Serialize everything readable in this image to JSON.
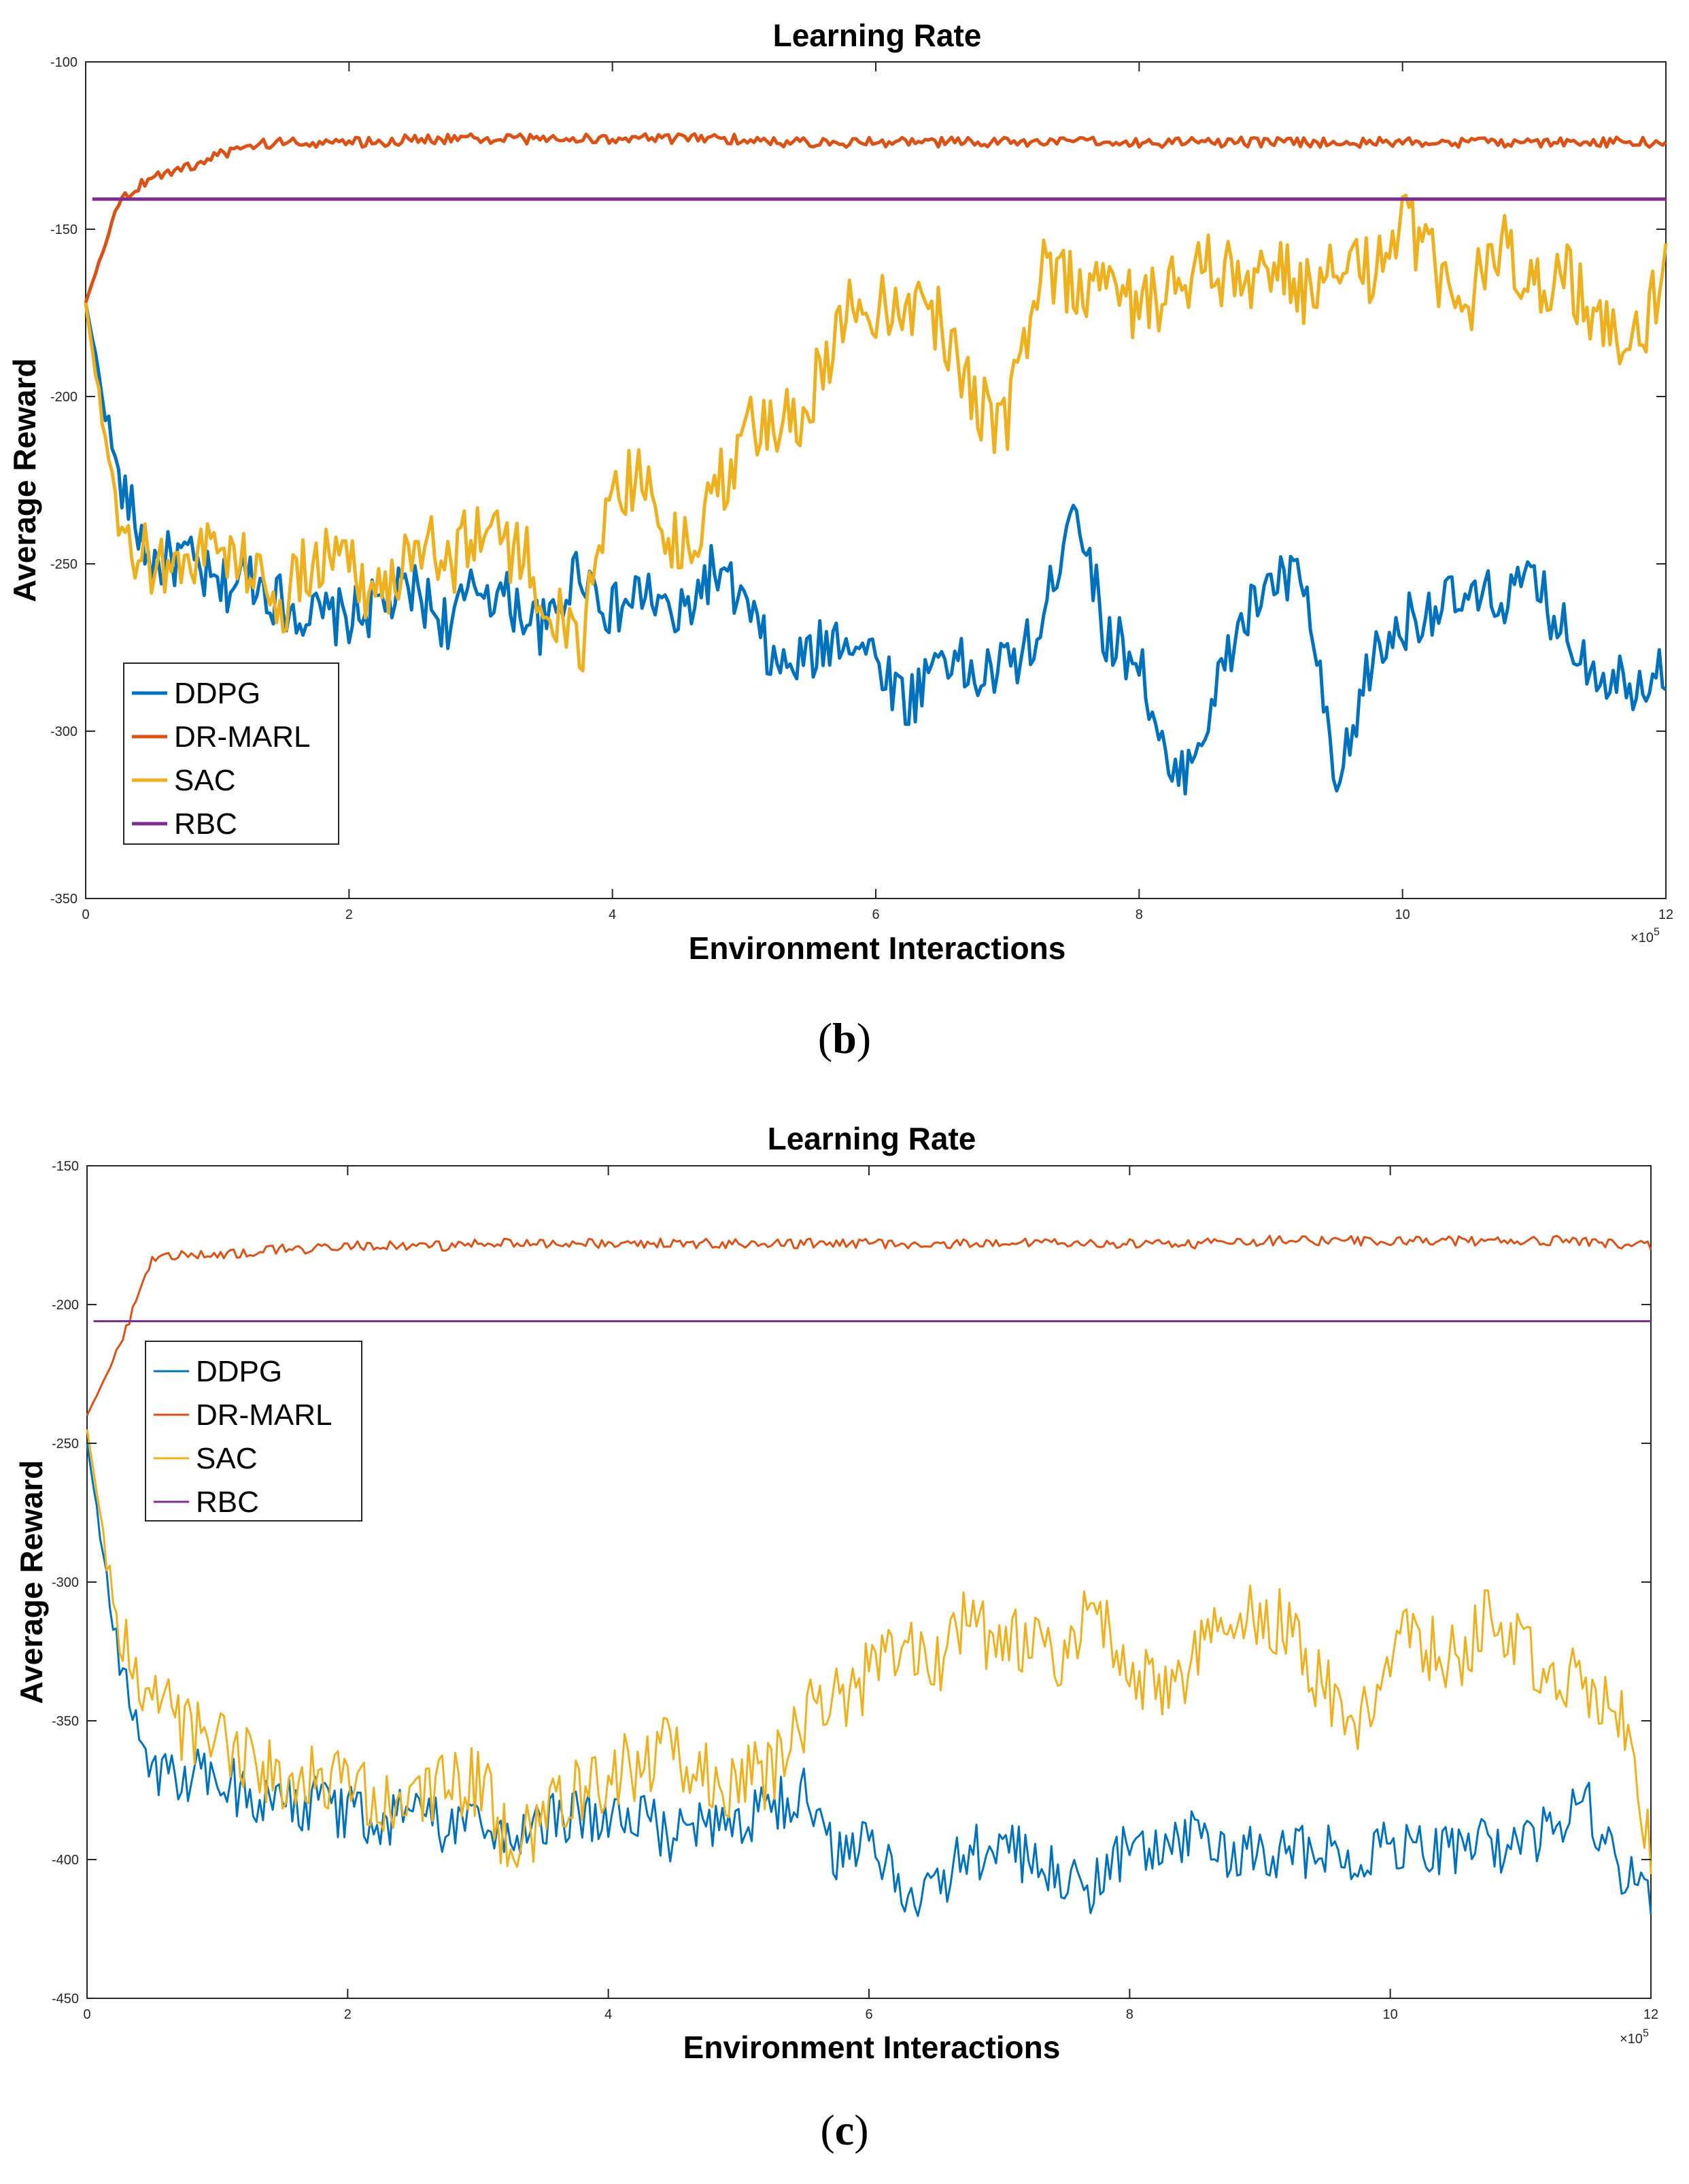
{
  "charts": [
    {
      "caption_open": "(",
      "caption_letter": "b",
      "caption_close": ")",
      "title": "Learning Rate",
      "xlabel": "Environment Interactions",
      "ylabel": "Average Reward",
      "x_multiplier": "×10",
      "x_exponent": "5",
      "xticks": [
        "0",
        "2",
        "4",
        "6",
        "8",
        "10",
        "12"
      ],
      "yticks": [
        "-100",
        "-150",
        "-200",
        "-250",
        "-300",
        "-350"
      ],
      "legend": [
        {
          "name": "DDPG",
          "color": "#0072BD"
        },
        {
          "name": "DR-MARL",
          "color": "#D95319"
        },
        {
          "name": "SAC",
          "color": "#EDB120"
        },
        {
          "name": "RBC",
          "color": "#7E2F8E"
        }
      ]
    },
    {
      "caption_open": "(",
      "caption_letter": "c",
      "caption_close": ")",
      "title": "Learning Rate",
      "xlabel": "Environment Interactions",
      "ylabel": "Average Reward",
      "x_multiplier": "×10",
      "x_exponent": "5",
      "xticks": [
        "0",
        "2",
        "4",
        "6",
        "8",
        "10",
        "12"
      ],
      "yticks": [
        "-150",
        "-200",
        "-250",
        "-300",
        "-350",
        "-400",
        "-450"
      ],
      "legend": [
        {
          "name": "DDPG",
          "color": "#0072BD"
        },
        {
          "name": "DR-MARL",
          "color": "#D95319"
        },
        {
          "name": "SAC",
          "color": "#EDB120"
        },
        {
          "name": "RBC",
          "color": "#7E2F8E"
        }
      ]
    }
  ],
  "chart_data": [
    {
      "type": "line",
      "title": "Learning Rate",
      "xlabel": "Environment Interactions",
      "ylabel": "Average Reward",
      "x_scale": "×10^5",
      "xlim": [
        0,
        12
      ],
      "ylim": [
        -350,
        -100
      ],
      "x": [
        0,
        0.25,
        0.5,
        0.75,
        1,
        1.25,
        1.5,
        1.75,
        2,
        2.25,
        2.5,
        2.75,
        3,
        3.25,
        3.5,
        3.75,
        4,
        4.25,
        4.5,
        4.75,
        5,
        5.25,
        5.5,
        5.75,
        6,
        6.25,
        6.5,
        6.75,
        7,
        7.25,
        7.5,
        7.75,
        8,
        8.25,
        8.5,
        8.75,
        9,
        9.25,
        9.5,
        9.75,
        10,
        10.25,
        10.5,
        10.75,
        11,
        11.25,
        11.5,
        11.75,
        12
      ],
      "series": [
        {
          "name": "DDPG",
          "color": "#0072BD",
          "values": [
            -172,
            -225,
            -250,
            -248,
            -258,
            -253,
            -262,
            -266,
            -266,
            -262,
            -258,
            -268,
            -256,
            -262,
            -270,
            -250,
            -265,
            -258,
            -268,
            -252,
            -262,
            -282,
            -278,
            -270,
            -278,
            -292,
            -275,
            -285,
            -280,
            -272,
            -228,
            -272,
            -278,
            -318,
            -298,
            -270,
            -255,
            -255,
            -320,
            -280,
            -268,
            -262,
            -262,
            -260,
            -256,
            -272,
            -282,
            -285,
            -280
          ]
        },
        {
          "name": "DR-MARL",
          "color": "#D95319",
          "values": [
            -172,
            -142,
            -134,
            -132,
            -128,
            -125,
            -124,
            -124,
            -124,
            -124,
            -123,
            -123,
            -123,
            -123,
            -123,
            -123,
            -123,
            -123,
            -123,
            -123,
            -123,
            -124,
            -124,
            -124,
            -124,
            -124,
            -124,
            -124,
            -124,
            -124,
            -124,
            -124,
            -124,
            -124,
            -124,
            -124,
            -124,
            -124,
            -124,
            -124,
            -124,
            -124,
            -124,
            -124,
            -124,
            -124,
            -124,
            -124,
            -124
          ]
        },
        {
          "name": "SAC",
          "color": "#EDB120",
          "values": [
            -172,
            -242,
            -250,
            -248,
            -245,
            -250,
            -262,
            -248,
            -248,
            -262,
            -240,
            -250,
            -238,
            -245,
            -258,
            -280,
            -225,
            -225,
            -248,
            -232,
            -210,
            -212,
            -200,
            -175,
            -172,
            -170,
            -178,
            -200,
            -210,
            -160,
            -165,
            -168,
            -172,
            -168,
            -162,
            -165,
            -162,
            -168,
            -165,
            -162,
            -148,
            -162,
            -172,
            -155,
            -165,
            -162,
            -180,
            -188,
            -158
          ]
        },
        {
          "name": "RBC",
          "color": "#7E2F8E",
          "values": [
            -141,
            -141,
            -141,
            -141,
            -141,
            -141,
            -141,
            -141,
            -141,
            -141,
            -141,
            -141,
            -141,
            -141,
            -141,
            -141,
            -141,
            -141,
            -141,
            -141,
            -141,
            -141,
            -141,
            -141,
            -141,
            -141,
            -141,
            -141,
            -141,
            -141,
            -141,
            -141,
            -141,
            -141,
            -141,
            -141,
            -141,
            -141,
            -141,
            -141,
            -141,
            -141,
            -141,
            -141,
            -141,
            -141,
            -141,
            -141,
            -141
          ]
        }
      ],
      "legend_position": "lower-left"
    },
    {
      "type": "line",
      "title": "Learning Rate",
      "xlabel": "Environment Interactions",
      "ylabel": "Average Reward",
      "x_scale": "×10^5",
      "xlim": [
        0,
        12
      ],
      "ylim": [
        -450,
        -150
      ],
      "x": [
        0,
        0.25,
        0.5,
        0.75,
        1,
        1.25,
        1.5,
        1.75,
        2,
        2.25,
        2.5,
        2.75,
        3,
        3.25,
        3.5,
        3.75,
        4,
        4.25,
        4.5,
        4.75,
        5,
        5.25,
        5.5,
        5.75,
        6,
        6.25,
        6.5,
        6.75,
        7,
        7.25,
        7.5,
        7.75,
        8,
        8.25,
        8.5,
        8.75,
        9,
        9.25,
        9.5,
        9.75,
        10,
        10.25,
        10.5,
        10.75,
        11,
        11.25,
        11.5,
        11.75,
        12
      ],
      "series": [
        {
          "name": "DDPG",
          "color": "#0072BD",
          "values": [
            -250,
            -330,
            -372,
            -370,
            -372,
            -376,
            -378,
            -380,
            -383,
            -384,
            -386,
            -388,
            -389,
            -388,
            -388,
            -382,
            -389,
            -386,
            -391,
            -388,
            -385,
            -380,
            -376,
            -398,
            -392,
            -410,
            -412,
            -398,
            -395,
            -400,
            -408,
            -410,
            -395,
            -398,
            -392,
            -400,
            -396,
            -398,
            -395,
            -402,
            -392,
            -398,
            -395,
            -396,
            -392,
            -390,
            -380,
            -405,
            -412
          ]
        },
        {
          "name": "DR-MARL",
          "color": "#D95319",
          "values": [
            -240,
            -215,
            -183,
            -182,
            -182,
            -181,
            -180,
            -180,
            -179,
            -179,
            -179,
            -179,
            -178,
            -178,
            -178,
            -178,
            -178,
            -178,
            -178,
            -178,
            -178,
            -178,
            -178,
            -178,
            -178,
            -178,
            -178,
            -178,
            -178,
            -178,
            -178,
            -178,
            -178,
            -178,
            -178,
            -178,
            -177,
            -177,
            -177,
            -177,
            -177,
            -177,
            -177,
            -177,
            -177,
            -177,
            -177,
            -178,
            -179
          ]
        },
        {
          "name": "SAC",
          "color": "#EDB120",
          "values": [
            -245,
            -320,
            -342,
            -352,
            -360,
            -365,
            -370,
            -372,
            -375,
            -380,
            -382,
            -375,
            -372,
            -395,
            -388,
            -375,
            -370,
            -365,
            -360,
            -370,
            -372,
            -368,
            -350,
            -340,
            -335,
            -325,
            -330,
            -315,
            -320,
            -325,
            -330,
            -305,
            -330,
            -345,
            -330,
            -315,
            -310,
            -320,
            -340,
            -350,
            -325,
            -320,
            -330,
            -315,
            -325,
            -330,
            -335,
            -345,
            -400
          ]
        },
        {
          "name": "RBC",
          "color": "#7E2F8E",
          "values": [
            -206,
            -206,
            -206,
            -206,
            -206,
            -206,
            -206,
            -206,
            -206,
            -206,
            -206,
            -206,
            -206,
            -206,
            -206,
            -206,
            -206,
            -206,
            -206,
            -206,
            -206,
            -206,
            -206,
            -206,
            -206,
            -206,
            -206,
            -206,
            -206,
            -206,
            -206,
            -206,
            -206,
            -206,
            -206,
            -206,
            -206,
            -206,
            -206,
            -206,
            -206,
            -206,
            -206,
            -206,
            -206,
            -206,
            -206,
            -206,
            -206
          ]
        }
      ],
      "legend_position": "middle-left"
    }
  ]
}
